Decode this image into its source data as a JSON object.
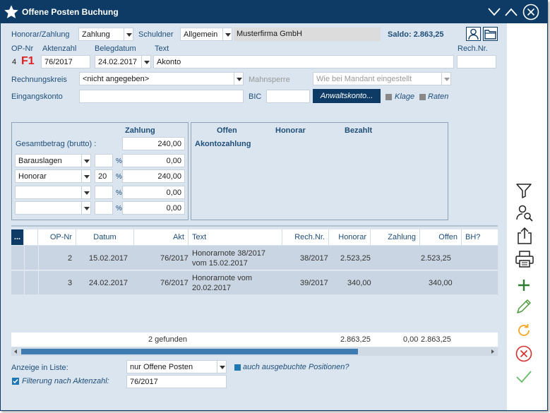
{
  "window": {
    "title": "Offene Posten Buchung"
  },
  "header": {
    "honorar_label": "Honorar/Zahlung",
    "honorar_value": "Zahlung",
    "schuldner_label": "Schuldner",
    "schuldner_value": "Allgemein",
    "schuldner_name": "Musterfirma GmbH",
    "saldo_label": "Saldo:",
    "saldo_value": "2.863,25",
    "opnr_label": "OP-Nr",
    "opnr_value": "4",
    "f1": "F1",
    "aktenzahl_label": "Aktenzahl",
    "aktenzahl_value": "76/2017",
    "belegdatum_label": "Belegdatum",
    "belegdatum_value": "24.02.2017",
    "text_label": "Text",
    "text_value": "Akonto",
    "rechnr_label": "Rech.Nr.",
    "rechnr_value": "",
    "rechnungskreis_label": "Rechnungskreis",
    "rechnungskreis_value": "<nicht angegeben>",
    "mahnsperre_label": "Mahnsperre",
    "mahnsperre_value": "Wie bei Mandant eingestellt",
    "eingangskonto_label": "Eingangskonto",
    "eingangskonto_value": "",
    "bic_label": "BIC",
    "bic_value": "",
    "anwaltskonto_label": "Anwaltskonto...",
    "klage_label": "Klage",
    "raten_label": "Raten"
  },
  "zahlung_panel": {
    "header": "Zahlung",
    "gesamt_label": "Gesamtbetrag (brutto) :",
    "gesamt_value": "240,00",
    "rows": [
      {
        "type": "Barauslagen",
        "pct": "",
        "pct_sign": "%",
        "amount": "0,00"
      },
      {
        "type": "Honorar",
        "pct": "20",
        "pct_sign": "%",
        "amount": "240,00"
      },
      {
        "type": "",
        "pct": "",
        "pct_sign": "%",
        "amount": "0,00"
      },
      {
        "type": "",
        "pct": "",
        "pct_sign": "%",
        "amount": "0,00"
      }
    ]
  },
  "summary_panel": {
    "col_offen": "Offen",
    "col_honorar": "Honorar",
    "col_bezahlt": "Bezahlt",
    "row_label": "Akontozahlung"
  },
  "table": {
    "menu_label": "...",
    "headers": [
      "OP-Nr",
      "Datum",
      "Akt",
      "Text",
      "Rech.Nr.",
      "Honorar",
      "Zahlung",
      "Offen",
      "BH?"
    ],
    "rows": [
      {
        "opnr": "2",
        "datum": "15.02.2017",
        "akt": "76/2017",
        "text1": "Honorarnote 38/2017",
        "text2": "vom 15.02.2017",
        "rechnr": "38/2017",
        "honorar": "2.523,25",
        "zahlung": "",
        "offen": "2.523,25",
        "bh": ""
      },
      {
        "opnr": "3",
        "datum": "24.02.2017",
        "akt": "76/2017",
        "text1": "Honorarnote vom",
        "text2": "20.02.2017",
        "rechnr": "39/2017",
        "honorar": "340,00",
        "zahlung": "",
        "offen": "340,00",
        "bh": ""
      }
    ],
    "footer": {
      "found": "2 gefunden",
      "honorar": "2.863,25",
      "zahlung": "0,00",
      "offen": "2.863,25"
    }
  },
  "bottom": {
    "anzeige_label": "Anzeige in Liste:",
    "anzeige_value": "nur Offene Posten",
    "ausgebucht_label": "auch ausgebuchte Positionen?",
    "filter_label": "Filterung nach Aktenzahl:",
    "filter_value": "76/2017"
  },
  "icons": {
    "title": "star-icon",
    "toolbar": [
      "filter-icon",
      "person-search-icon",
      "share-icon",
      "printer-icon",
      "plus-icon",
      "pencil-icon",
      "refresh-icon",
      "cancel-icon",
      "check-icon"
    ]
  },
  "colors": {
    "primary": "#0d3b66",
    "accent_green": "#2e7d32",
    "accent_red": "#d32f2f",
    "accent_orange": "#f5a623",
    "f1_red": "#e02020"
  }
}
